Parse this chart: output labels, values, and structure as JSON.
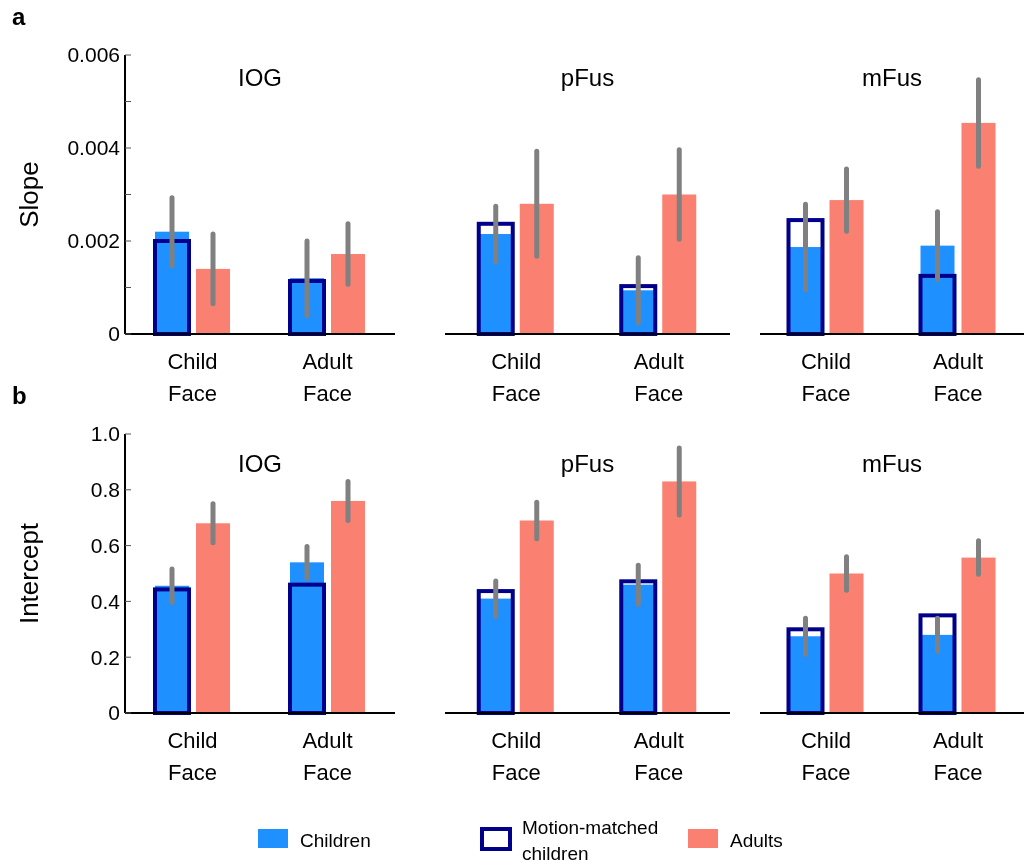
{
  "chart_data": [
    {
      "type": "bar",
      "title": "IOG",
      "ylabel": "Slope",
      "annotations": [
        "a"
      ],
      "categories": [
        "Child Face",
        "Adult Face"
      ],
      "ylim": [
        0,
        0.006
      ],
      "yticks": [
        0,
        {
          "value": 0.001,
          "label": null
        },
        0.002,
        {
          "value": 0.003,
          "label": null
        },
        0.004,
        {
          "value": 0.005,
          "label": null
        },
        0.006
      ],
      "legend": false,
      "series": [
        {
          "color": "#1e90ff",
          "values": [
            0.0022,
            0.0012
          ],
          "errors": [
            0.00073,
            0.0008
          ]
        },
        {
          "color": "#00008b",
          "values": [
            0.002,
            0.00114
          ]
        },
        {
          "color": "#fa8072",
          "values": [
            0.0014,
            0.00172
          ],
          "errors": [
            0.00075,
            0.00065
          ]
        }
      ]
    },
    {
      "type": "bar",
      "title": "pFus",
      "categories": [
        "Child Face",
        "Adult Face"
      ],
      "ylim": [
        0,
        0.006
      ],
      "tick_labels": "x",
      "legend": false,
      "series": [
        {
          "color": "#1e90ff",
          "values": [
            0.00215,
            0.00094
          ],
          "errors": [
            0.0006,
            0.0007
          ]
        },
        {
          "color": "#00008b",
          "values": [
            0.00237,
            0.00103
          ]
        },
        {
          "color": "#fa8072",
          "values": [
            0.0028,
            0.003
          ],
          "errors": [
            0.00113,
            0.00096
          ]
        }
      ]
    },
    {
      "type": "bar",
      "title": "mFus",
      "categories": [
        "Child Face",
        "Adult Face"
      ],
      "ylim": [
        0,
        0.006
      ],
      "tick_labels": "x",
      "legend": false,
      "series": [
        {
          "color": "#1e90ff",
          "values": [
            0.00187,
            0.0019
          ],
          "errors": [
            0.00092,
            0.00073
          ]
        },
        {
          "color": "#00008b",
          "values": [
            0.00245,
            0.00125
          ]
        },
        {
          "color": "#fa8072",
          "values": [
            0.00288,
            0.00454
          ],
          "errors": [
            0.00067,
            0.00093
          ]
        }
      ]
    },
    {
      "type": "bar",
      "title": "IOG",
      "ylabel": "Intercept",
      "annotations": [
        "b"
      ],
      "categories": [
        "Child Face",
        "Adult Face"
      ],
      "ylim": [
        0,
        1
      ],
      "yticks": [
        0,
        0.2,
        0.4,
        0.6,
        0.8,
        {
          "value": 1,
          "label": "1.0"
        }
      ],
      "legend": false,
      "series": [
        {
          "color": "#1e90ff",
          "values": [
            0.456,
            0.54
          ],
          "errors": [
            0.06,
            0.057
          ]
        },
        {
          "color": "#00008b",
          "values": [
            0.443,
            0.46
          ]
        },
        {
          "color": "#fa8072",
          "values": [
            0.68,
            0.76
          ],
          "errors": [
            0.07,
            0.07
          ]
        }
      ]
    },
    {
      "type": "bar",
      "title": "pFus",
      "categories": [
        "Child Face",
        "Adult Face"
      ],
      "ylim": [
        0,
        1
      ],
      "tick_labels": "x",
      "legend": "bottom",
      "series": [
        {
          "name": "Children",
          "color": "#1e90ff",
          "values": [
            0.41,
            0.46
          ],
          "errors": [
            0.063,
            0.07
          ]
        },
        {
          "name": "Motion-matched children",
          "color": "#00008b",
          "values": [
            0.437,
            0.472
          ]
        },
        {
          "name": "Adults",
          "color": "#fa8072",
          "values": [
            0.69,
            0.83
          ],
          "errors": [
            0.065,
            0.12
          ]
        }
      ]
    },
    {
      "type": "bar",
      "title": "mFus",
      "categories": [
        "Child Face",
        "Adult Face"
      ],
      "ylim": [
        0,
        1
      ],
      "tick_labels": "x",
      "legend": false,
      "series": [
        {
          "color": "#1e90ff",
          "values": [
            0.275,
            0.28
          ],
          "errors": [
            0.065,
            0.06
          ]
        },
        {
          "color": "#00008b",
          "values": [
            0.3,
            0.35
          ]
        },
        {
          "color": "#fa8072",
          "values": [
            0.5,
            0.557
          ],
          "errors": [
            0.06,
            0.06
          ]
        }
      ]
    }
  ]
}
